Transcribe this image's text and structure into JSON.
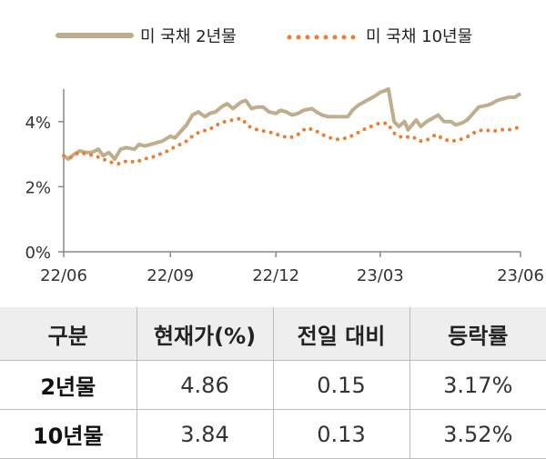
{
  "chart_data": {
    "type": "line",
    "title": "",
    "xlabel": "",
    "ylabel": "",
    "x_ticks": [
      "22/06",
      "22/09",
      "22/12",
      "23/03",
      "23/06"
    ],
    "y_ticks": [
      "0%",
      "2%",
      "4%"
    ],
    "ylim": [
      0,
      5
    ],
    "legend_position": "top",
    "grid": false,
    "series": [
      {
        "name": "미 국채 2년물",
        "color": "#bfae8e",
        "style": "solid",
        "points": [
          [
            "2022-06-01",
            2.95
          ],
          [
            "2022-06-05",
            2.85
          ],
          [
            "2022-06-10",
            3.0
          ],
          [
            "2022-06-15",
            3.1
          ],
          [
            "2022-06-20",
            3.05
          ],
          [
            "2022-06-25",
            3.05
          ],
          [
            "2022-07-01",
            3.15
          ],
          [
            "2022-07-05",
            2.95
          ],
          [
            "2022-07-10",
            3.05
          ],
          [
            "2022-07-15",
            2.85
          ],
          [
            "2022-07-20",
            3.15
          ],
          [
            "2022-07-25",
            3.2
          ],
          [
            "2022-08-01",
            3.15
          ],
          [
            "2022-08-05",
            3.3
          ],
          [
            "2022-08-10",
            3.25
          ],
          [
            "2022-08-15",
            3.3
          ],
          [
            "2022-08-20",
            3.35
          ],
          [
            "2022-08-25",
            3.4
          ],
          [
            "2022-09-01",
            3.55
          ],
          [
            "2022-09-05",
            3.5
          ],
          [
            "2022-09-10",
            3.7
          ],
          [
            "2022-09-15",
            3.9
          ],
          [
            "2022-09-20",
            4.2
          ],
          [
            "2022-09-25",
            4.3
          ],
          [
            "2022-10-01",
            4.15
          ],
          [
            "2022-10-05",
            4.25
          ],
          [
            "2022-10-10",
            4.3
          ],
          [
            "2022-10-15",
            4.45
          ],
          [
            "2022-10-20",
            4.55
          ],
          [
            "2022-10-25",
            4.4
          ],
          [
            "2022-11-01",
            4.6
          ],
          [
            "2022-11-05",
            4.65
          ],
          [
            "2022-11-10",
            4.4
          ],
          [
            "2022-11-15",
            4.45
          ],
          [
            "2022-11-20",
            4.45
          ],
          [
            "2022-11-25",
            4.3
          ],
          [
            "2022-12-01",
            4.25
          ],
          [
            "2022-12-05",
            4.35
          ],
          [
            "2022-12-10",
            4.3
          ],
          [
            "2022-12-15",
            4.2
          ],
          [
            "2022-12-20",
            4.25
          ],
          [
            "2022-12-25",
            4.35
          ],
          [
            "2023-01-01",
            4.4
          ],
          [
            "2023-01-05",
            4.3
          ],
          [
            "2023-01-10",
            4.2
          ],
          [
            "2023-01-15",
            4.15
          ],
          [
            "2023-01-20",
            4.15
          ],
          [
            "2023-01-25",
            4.15
          ],
          [
            "2023-02-01",
            4.15
          ],
          [
            "2023-02-05",
            4.35
          ],
          [
            "2023-02-10",
            4.5
          ],
          [
            "2023-02-15",
            4.6
          ],
          [
            "2023-02-20",
            4.7
          ],
          [
            "2023-02-25",
            4.8
          ],
          [
            "2023-03-01",
            4.9
          ],
          [
            "2023-03-05",
            4.95
          ],
          [
            "2023-03-08",
            5.0
          ],
          [
            "2023-03-10",
            4.6
          ],
          [
            "2023-03-13",
            4.0
          ],
          [
            "2023-03-17",
            3.85
          ],
          [
            "2023-03-22",
            4.0
          ],
          [
            "2023-03-25",
            3.75
          ],
          [
            "2023-04-01",
            4.05
          ],
          [
            "2023-04-05",
            3.85
          ],
          [
            "2023-04-10",
            4.0
          ],
          [
            "2023-04-15",
            4.1
          ],
          [
            "2023-04-20",
            4.2
          ],
          [
            "2023-04-25",
            4.0
          ],
          [
            "2023-05-01",
            4.0
          ],
          [
            "2023-05-05",
            3.9
          ],
          [
            "2023-05-10",
            3.95
          ],
          [
            "2023-05-15",
            4.05
          ],
          [
            "2023-05-20",
            4.25
          ],
          [
            "2023-05-25",
            4.45
          ],
          [
            "2023-06-01",
            4.5
          ],
          [
            "2023-06-05",
            4.55
          ],
          [
            "2023-06-10",
            4.65
          ],
          [
            "2023-06-15",
            4.7
          ],
          [
            "2023-06-20",
            4.75
          ],
          [
            "2023-06-25",
            4.75
          ],
          [
            "2023-06-30",
            4.86
          ]
        ]
      },
      {
        "name": "미 국채 10년물",
        "color": "#ed7d31",
        "style": "dotted",
        "points": [
          [
            "2022-06-01",
            2.95
          ],
          [
            "2022-06-07",
            2.9
          ],
          [
            "2022-06-14",
            3.05
          ],
          [
            "2022-06-21",
            3.0
          ],
          [
            "2022-06-28",
            2.95
          ],
          [
            "2022-07-05",
            2.85
          ],
          [
            "2022-07-12",
            2.75
          ],
          [
            "2022-07-19",
            2.7
          ],
          [
            "2022-07-26",
            2.8
          ],
          [
            "2022-08-02",
            2.75
          ],
          [
            "2022-08-09",
            2.85
          ],
          [
            "2022-08-16",
            2.9
          ],
          [
            "2022-08-23",
            3.0
          ],
          [
            "2022-08-30",
            3.1
          ],
          [
            "2022-09-06",
            3.25
          ],
          [
            "2022-09-13",
            3.35
          ],
          [
            "2022-09-20",
            3.55
          ],
          [
            "2022-09-27",
            3.7
          ],
          [
            "2022-10-04",
            3.75
          ],
          [
            "2022-10-11",
            3.9
          ],
          [
            "2022-10-18",
            4.0
          ],
          [
            "2022-10-25",
            4.05
          ],
          [
            "2022-11-01",
            4.1
          ],
          [
            "2022-11-08",
            3.85
          ],
          [
            "2022-11-15",
            3.75
          ],
          [
            "2022-11-22",
            3.7
          ],
          [
            "2022-11-29",
            3.65
          ],
          [
            "2022-12-06",
            3.55
          ],
          [
            "2022-12-13",
            3.5
          ],
          [
            "2022-12-20",
            3.6
          ],
          [
            "2022-12-27",
            3.8
          ],
          [
            "2023-01-03",
            3.75
          ],
          [
            "2023-01-10",
            3.6
          ],
          [
            "2023-01-17",
            3.5
          ],
          [
            "2023-01-24",
            3.45
          ],
          [
            "2023-01-31",
            3.5
          ],
          [
            "2023-02-07",
            3.6
          ],
          [
            "2023-02-14",
            3.75
          ],
          [
            "2023-02-21",
            3.85
          ],
          [
            "2023-02-28",
            3.95
          ],
          [
            "2023-03-07",
            3.95
          ],
          [
            "2023-03-14",
            3.6
          ],
          [
            "2023-03-21",
            3.5
          ],
          [
            "2023-03-28",
            3.55
          ],
          [
            "2023-04-04",
            3.4
          ],
          [
            "2023-04-11",
            3.45
          ],
          [
            "2023-04-18",
            3.6
          ],
          [
            "2023-04-25",
            3.45
          ],
          [
            "2023-05-02",
            3.4
          ],
          [
            "2023-05-09",
            3.45
          ],
          [
            "2023-05-16",
            3.55
          ],
          [
            "2023-05-23",
            3.7
          ],
          [
            "2023-05-30",
            3.75
          ],
          [
            "2023-06-06",
            3.7
          ],
          [
            "2023-06-13",
            3.75
          ],
          [
            "2023-06-20",
            3.75
          ],
          [
            "2023-06-30",
            3.84
          ]
        ]
      }
    ]
  },
  "table": {
    "headers": [
      "구분",
      "현재가(%)",
      "전일 대비",
      "등락률"
    ],
    "rows": [
      [
        "2년물",
        "4.86",
        "0.15",
        "3.17%"
      ],
      [
        "10년물",
        "3.84",
        "0.13",
        "3.52%"
      ]
    ]
  }
}
